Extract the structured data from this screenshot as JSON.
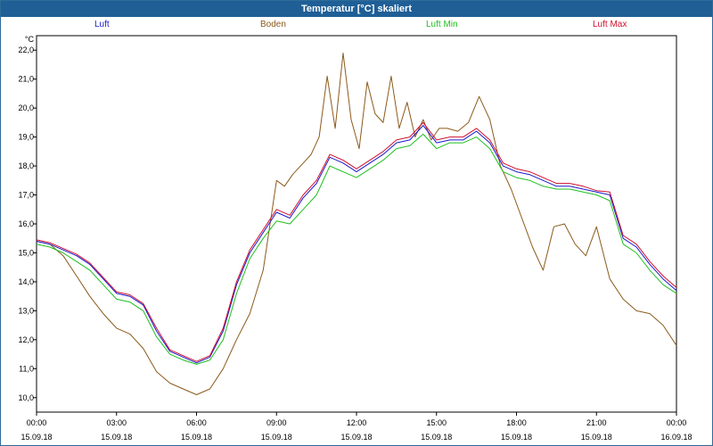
{
  "window": {
    "title": "Temperatur [°C] skaliert"
  },
  "colors": {
    "titlebar": "#1f5f96",
    "luft": "#1a1acc",
    "boden": "#8b5a1b",
    "luft_min": "#1fbf1f",
    "luft_max": "#d01030"
  },
  "chart_data": {
    "type": "line",
    "title": "Temperatur [°C] skaliert",
    "ylabel": "°C",
    "xlabel": "",
    "ylim": [
      9.5,
      22.5
    ],
    "yticks": [
      "10,0",
      "11,0",
      "12,0",
      "13,0",
      "14,0",
      "15,0",
      "16,0",
      "17,0",
      "18,0",
      "19,0",
      "20,0",
      "21,0",
      "22,0"
    ],
    "xticks": [
      {
        "time": "00:00",
        "date": "15.09.18"
      },
      {
        "time": "03:00",
        "date": "15.09.18"
      },
      {
        "time": "06:00",
        "date": "15.09.18"
      },
      {
        "time": "09:00",
        "date": "15.09.18"
      },
      {
        "time": "12:00",
        "date": "15.09.18"
      },
      {
        "time": "15:00",
        "date": "15.09.18"
      },
      {
        "time": "18:00",
        "date": "15.09.18"
      },
      {
        "time": "21:00",
        "date": "15.09.18"
      },
      {
        "time": "00:00",
        "date": "16.09.18"
      }
    ],
    "x_unit": "hours since 15.09.18 00:00",
    "grid": true,
    "legend_position": "top",
    "series": [
      {
        "name": "Luft",
        "x": [
          0,
          0.5,
          1,
          1.5,
          2,
          2.5,
          3,
          3.5,
          4,
          4.5,
          5,
          5.5,
          6,
          6.5,
          7,
          7.5,
          8,
          8.5,
          9,
          9.5,
          10,
          10.5,
          11,
          11.5,
          12,
          12.5,
          13,
          13.5,
          14,
          14.5,
          15,
          15.5,
          16,
          16.5,
          17,
          17.5,
          18,
          18.5,
          19,
          19.5,
          20,
          20.5,
          21,
          21.5,
          22,
          22.5,
          23,
          23.5,
          24
        ],
        "y": [
          15.4,
          15.3,
          15.1,
          14.9,
          14.6,
          14.1,
          13.6,
          13.5,
          13.2,
          12.3,
          11.6,
          11.4,
          11.2,
          11.4,
          12.3,
          13.9,
          15.0,
          15.7,
          16.4,
          16.2,
          16.9,
          17.4,
          18.3,
          18.1,
          17.8,
          18.1,
          18.4,
          18.8,
          18.9,
          19.4,
          18.8,
          18.9,
          18.9,
          19.2,
          18.8,
          18.0,
          17.8,
          17.7,
          17.5,
          17.3,
          17.3,
          17.2,
          17.1,
          17.0,
          15.5,
          15.2,
          14.6,
          14.1,
          13.7
        ]
      },
      {
        "name": "Boden",
        "x": [
          0,
          0.5,
          1,
          1.5,
          2,
          2.5,
          3,
          3.5,
          4,
          4.5,
          5,
          5.5,
          6,
          6.5,
          7,
          7.5,
          8,
          8.5,
          9,
          9.3,
          9.6,
          10,
          10.3,
          10.6,
          10.9,
          11.2,
          11.5,
          11.8,
          12.1,
          12.4,
          12.7,
          13,
          13.3,
          13.6,
          13.9,
          14.2,
          14.5,
          14.8,
          15.1,
          15.4,
          15.8,
          16.2,
          16.6,
          17,
          17.4,
          17.8,
          18.2,
          18.6,
          19,
          19.4,
          19.8,
          20.2,
          20.6,
          21,
          21.5,
          22,
          22.5,
          23,
          23.5,
          24
        ],
        "y": [
          15.4,
          15.3,
          14.9,
          14.2,
          13.5,
          12.9,
          12.4,
          12.2,
          11.7,
          10.9,
          10.5,
          10.3,
          10.1,
          10.3,
          11.0,
          12.0,
          12.9,
          14.4,
          17.5,
          17.3,
          17.7,
          18.1,
          18.4,
          19.0,
          21.1,
          19.3,
          21.9,
          19.6,
          18.6,
          20.9,
          19.8,
          19.5,
          21.1,
          19.3,
          20.2,
          19.0,
          19.6,
          18.9,
          19.3,
          19.3,
          19.2,
          19.5,
          20.4,
          19.6,
          18.0,
          17.2,
          16.2,
          15.2,
          14.4,
          15.9,
          16.0,
          15.3,
          14.9,
          15.9,
          14.1,
          13.4,
          13.0,
          12.9,
          12.5,
          11.8
        ]
      },
      {
        "name": "Luft Min",
        "x": [
          0,
          0.5,
          1,
          1.5,
          2,
          2.5,
          3,
          3.5,
          4,
          4.5,
          5,
          5.5,
          6,
          6.5,
          7,
          7.5,
          8,
          8.5,
          9,
          9.5,
          10,
          10.5,
          11,
          11.5,
          12,
          12.5,
          13,
          13.5,
          14,
          14.5,
          15,
          15.5,
          16,
          16.5,
          17,
          17.5,
          18,
          18.5,
          19,
          19.5,
          20,
          20.5,
          21,
          21.5,
          22,
          22.5,
          23,
          23.5,
          24
        ],
        "y": [
          15.3,
          15.2,
          15.0,
          14.7,
          14.4,
          13.9,
          13.4,
          13.3,
          13.0,
          12.1,
          11.5,
          11.3,
          11.15,
          11.3,
          12.0,
          13.6,
          14.8,
          15.5,
          16.1,
          16.0,
          16.5,
          17.0,
          18.0,
          17.8,
          17.6,
          17.9,
          18.2,
          18.6,
          18.7,
          19.1,
          18.6,
          18.8,
          18.8,
          19.0,
          18.6,
          17.8,
          17.6,
          17.5,
          17.3,
          17.2,
          17.2,
          17.1,
          17.0,
          16.8,
          15.3,
          15.0,
          14.4,
          13.9,
          13.6
        ]
      },
      {
        "name": "Luft Max",
        "x": [
          0,
          0.5,
          1,
          1.5,
          2,
          2.5,
          3,
          3.5,
          4,
          4.5,
          5,
          5.5,
          6,
          6.5,
          7,
          7.5,
          8,
          8.5,
          9,
          9.5,
          10,
          10.5,
          11,
          11.5,
          12,
          12.5,
          13,
          13.5,
          14,
          14.5,
          15,
          15.5,
          16,
          16.5,
          17,
          17.5,
          18,
          18.5,
          19,
          19.5,
          20,
          20.5,
          21,
          21.5,
          22,
          22.5,
          23,
          23.5,
          24
        ],
        "y": [
          15.45,
          15.35,
          15.15,
          14.95,
          14.65,
          14.15,
          13.65,
          13.55,
          13.25,
          12.4,
          11.65,
          11.45,
          11.25,
          11.45,
          12.4,
          14.0,
          15.1,
          15.8,
          16.5,
          16.3,
          17.0,
          17.5,
          18.4,
          18.2,
          17.9,
          18.2,
          18.5,
          18.9,
          19.0,
          19.5,
          18.9,
          19.0,
          19.0,
          19.3,
          18.9,
          18.1,
          17.9,
          17.8,
          17.6,
          17.4,
          17.4,
          17.3,
          17.15,
          17.1,
          15.6,
          15.3,
          14.7,
          14.2,
          13.8
        ]
      }
    ]
  }
}
